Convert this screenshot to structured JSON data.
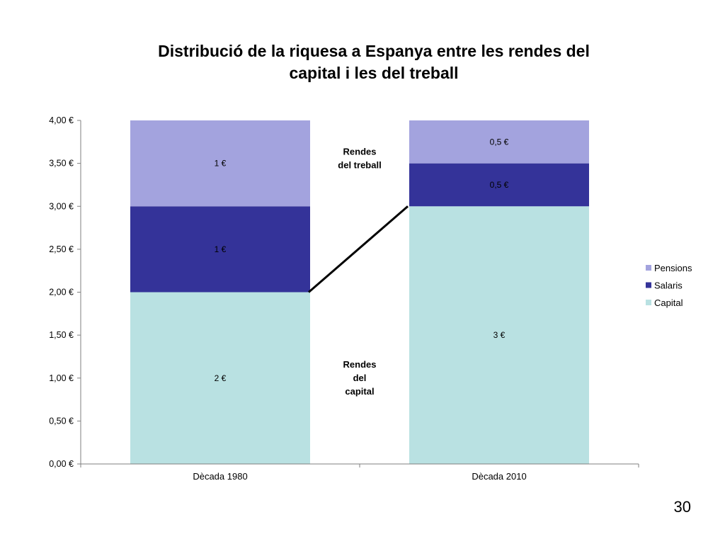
{
  "slide": {
    "number": "30"
  },
  "chart_data": {
    "type": "bar",
    "stacked": true,
    "title_lines": [
      "Distribució de la riquesa a Espanya entre les rendes del",
      "capital i les del treball"
    ],
    "categories": [
      "Dècada 1980",
      "Dècada 2010"
    ],
    "series": [
      {
        "name": "Capital",
        "values": [
          2,
          3
        ],
        "labels": [
          "2 €",
          "3 €"
        ],
        "color": "#b9e1e2"
      },
      {
        "name": "Salaris",
        "values": [
          1,
          0.5
        ],
        "labels": [
          "1 €",
          "0,5 €"
        ],
        "color": "#343399"
      },
      {
        "name": "Pensions",
        "values": [
          1,
          0.5
        ],
        "labels": [
          "1 €",
          "0,5 €"
        ],
        "color": "#a3a3de"
      }
    ],
    "y_ticks": [
      "0,00 €",
      "0,50 €",
      "1,00 €",
      "1,50 €",
      "2,00 €",
      "2,50 €",
      "3,00 €",
      "3,50 €",
      "4,00 €"
    ],
    "ylim": [
      0,
      4
    ],
    "y_step": 0.5,
    "grid": false,
    "legend_position": "right",
    "legend_order": [
      "Pensions",
      "Salaris",
      "Capital"
    ],
    "annotations": [
      {
        "lines": [
          "Rendes",
          "del treball"
        ],
        "anchor_y": 3.6
      },
      {
        "lines": [
          "Rendes",
          "del",
          "capital"
        ],
        "anchor_y": 1.12
      }
    ],
    "connector": {
      "from_value": 2,
      "to_value": 3
    }
  }
}
